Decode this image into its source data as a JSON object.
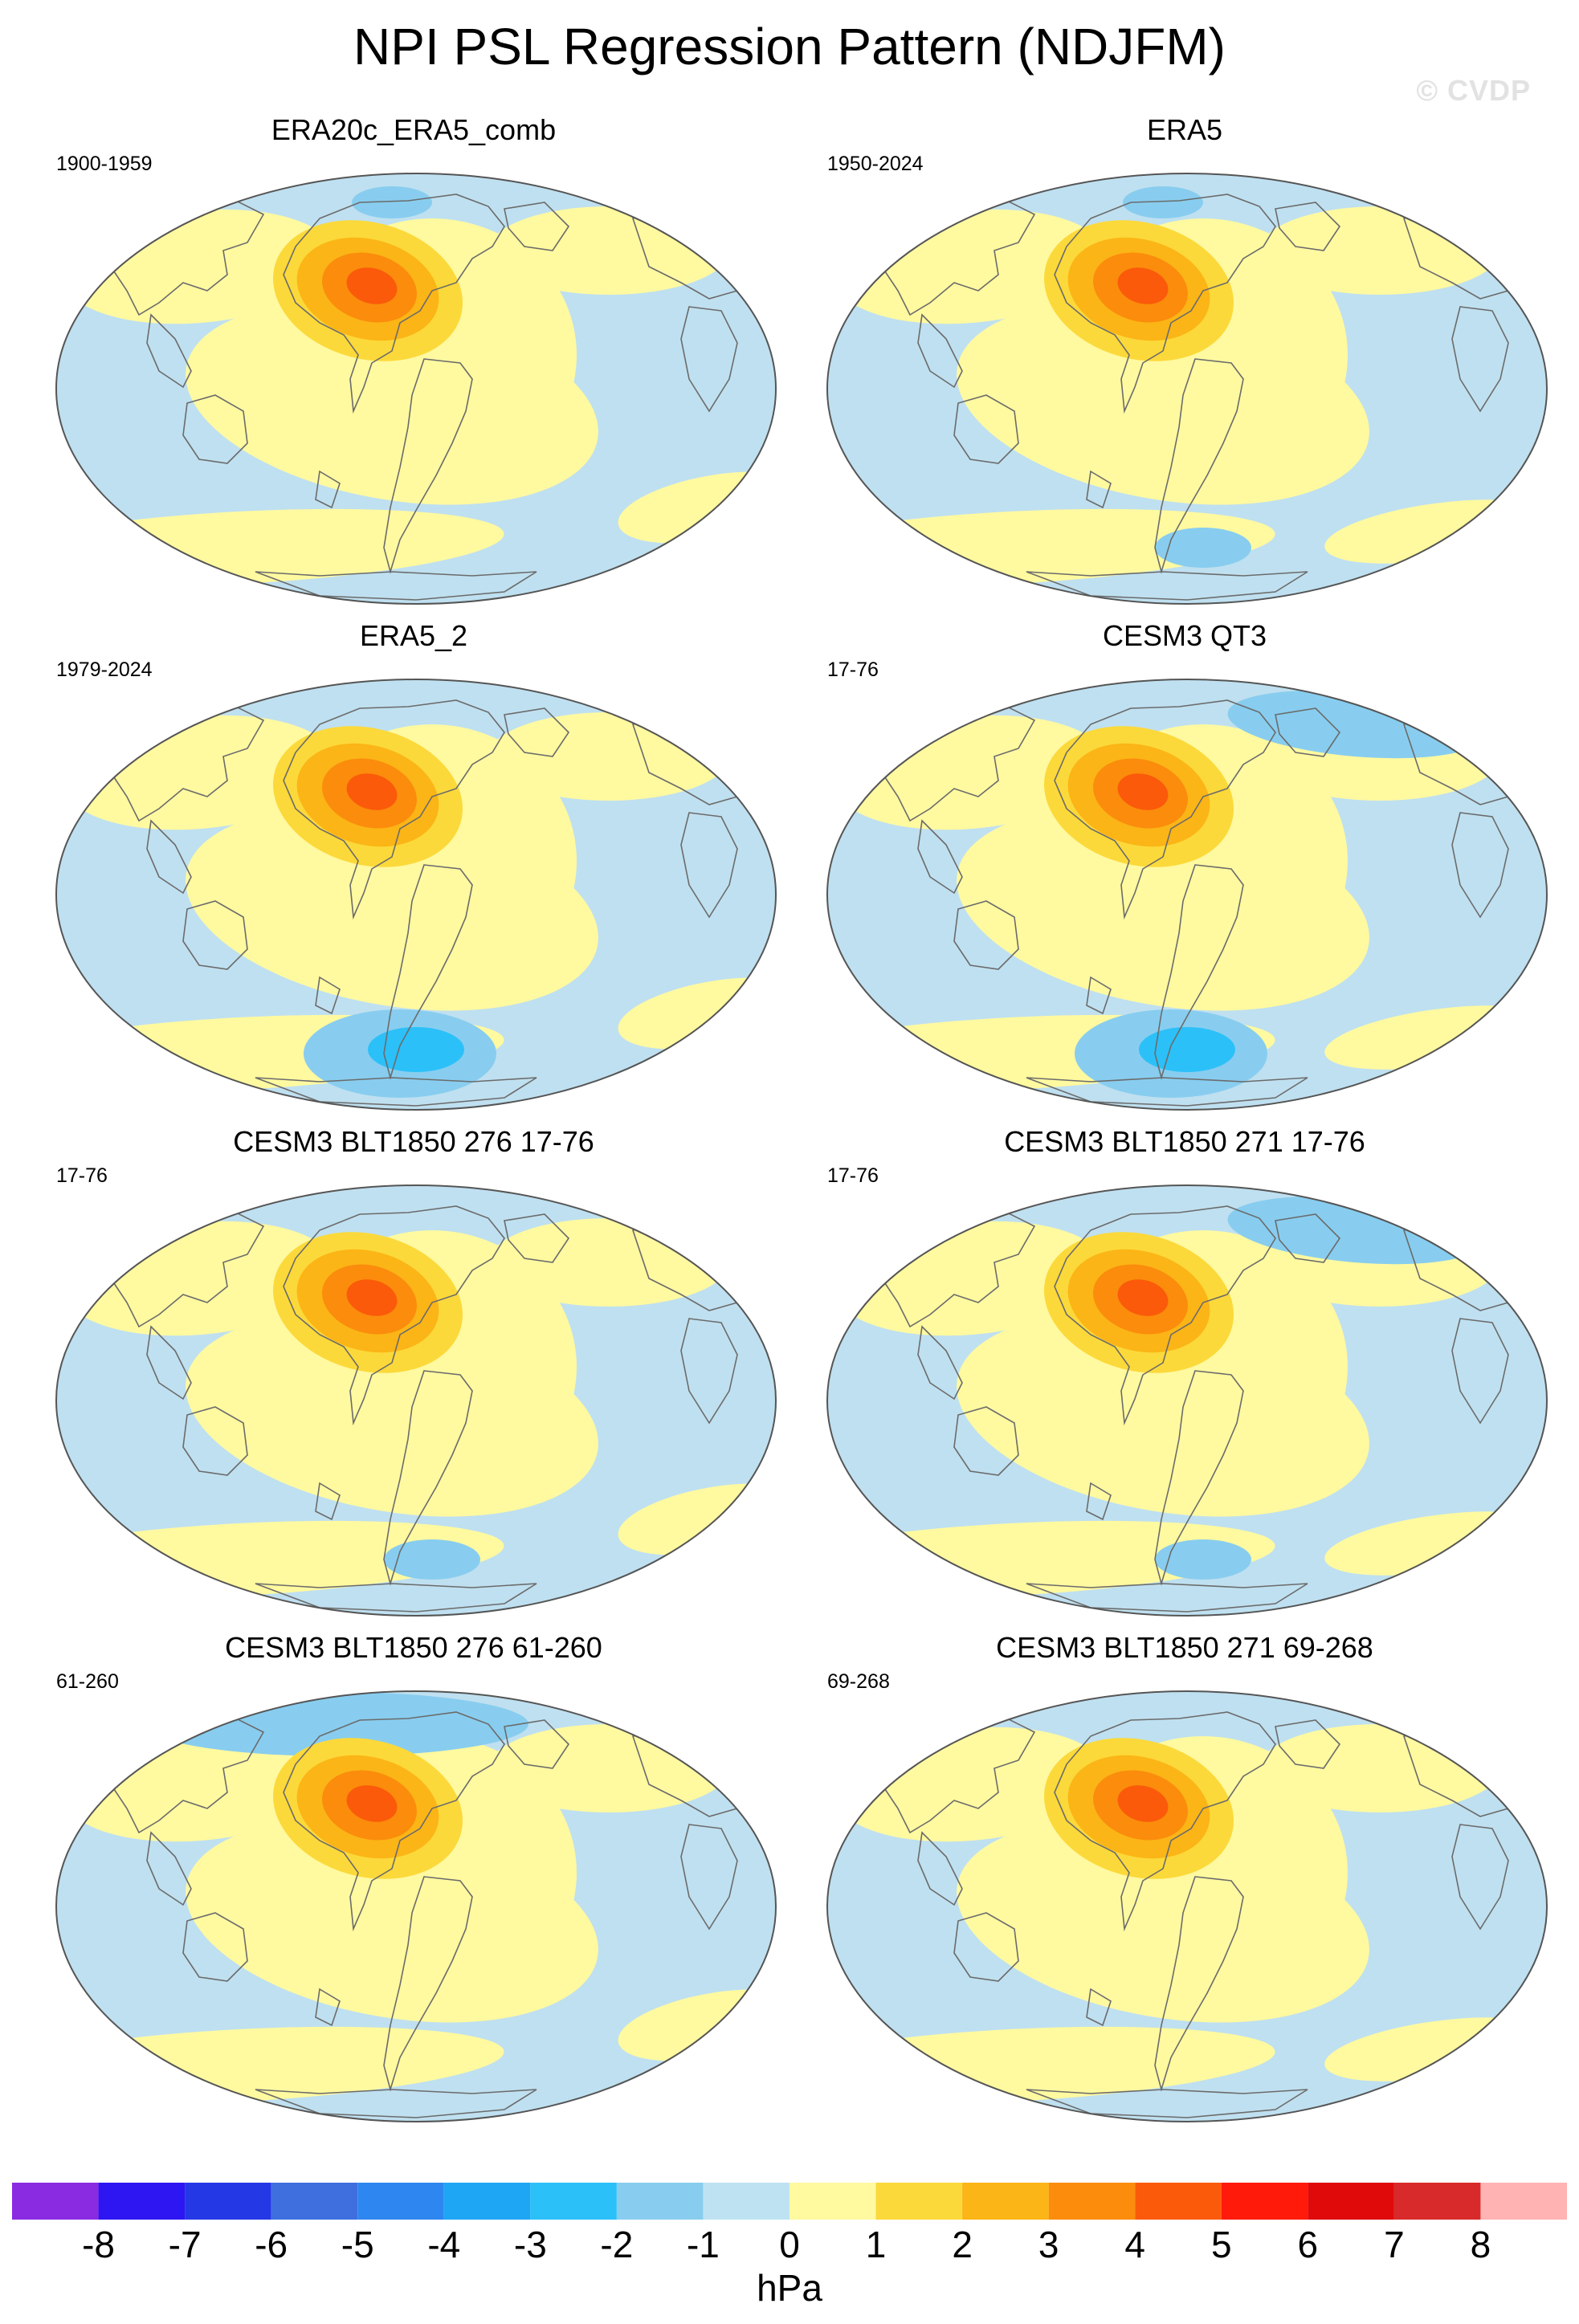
{
  "title": "NPI PSL Regression Pattern (NDJFM)",
  "watermark": "© CVDP",
  "colors": {
    "ocean_fill": "#bfe0f0",
    "land_outline": "#6b6b6b",
    "map_border": "#555555"
  },
  "panels": [
    {
      "name": "ERA20c_ERA5_comb",
      "period": "1900-1959"
    },
    {
      "name": "ERA5",
      "period": "1950-2024"
    },
    {
      "name": "ERA5_2",
      "period": "1979-2024"
    },
    {
      "name": "CESM3 QT3",
      "period": "17-76"
    },
    {
      "name": "CESM3 BLT1850 276 17-76",
      "period": "17-76"
    },
    {
      "name": "CESM3 BLT1850 271 17-76",
      "period": "17-76"
    },
    {
      "name": "CESM3 BLT1850 276 61-260",
      "period": "61-260"
    },
    {
      "name": "CESM3 BLT1850 271 69-268",
      "period": "69-268"
    }
  ],
  "colorbar": {
    "ticks": [
      "-8",
      "-7",
      "-6",
      "-5",
      "-4",
      "-3",
      "-2",
      "-1",
      "0",
      "1",
      "2",
      "3",
      "4",
      "5",
      "6",
      "7",
      "8"
    ],
    "colors": [
      "#8a2be2",
      "#2e16f2",
      "#2438e6",
      "#3f6fdf",
      "#2e86f0",
      "#1ea6f5",
      "#2cc0f8",
      "#88cdef",
      "#bfe2f2",
      "#fff9a0",
      "#fcd93a",
      "#fbb516",
      "#fb8c0c",
      "#fb5a0a",
      "#ff1a0a",
      "#e00a0a",
      "#d82a2a",
      "#ffb3b3"
    ],
    "unit": "hPa"
  }
}
